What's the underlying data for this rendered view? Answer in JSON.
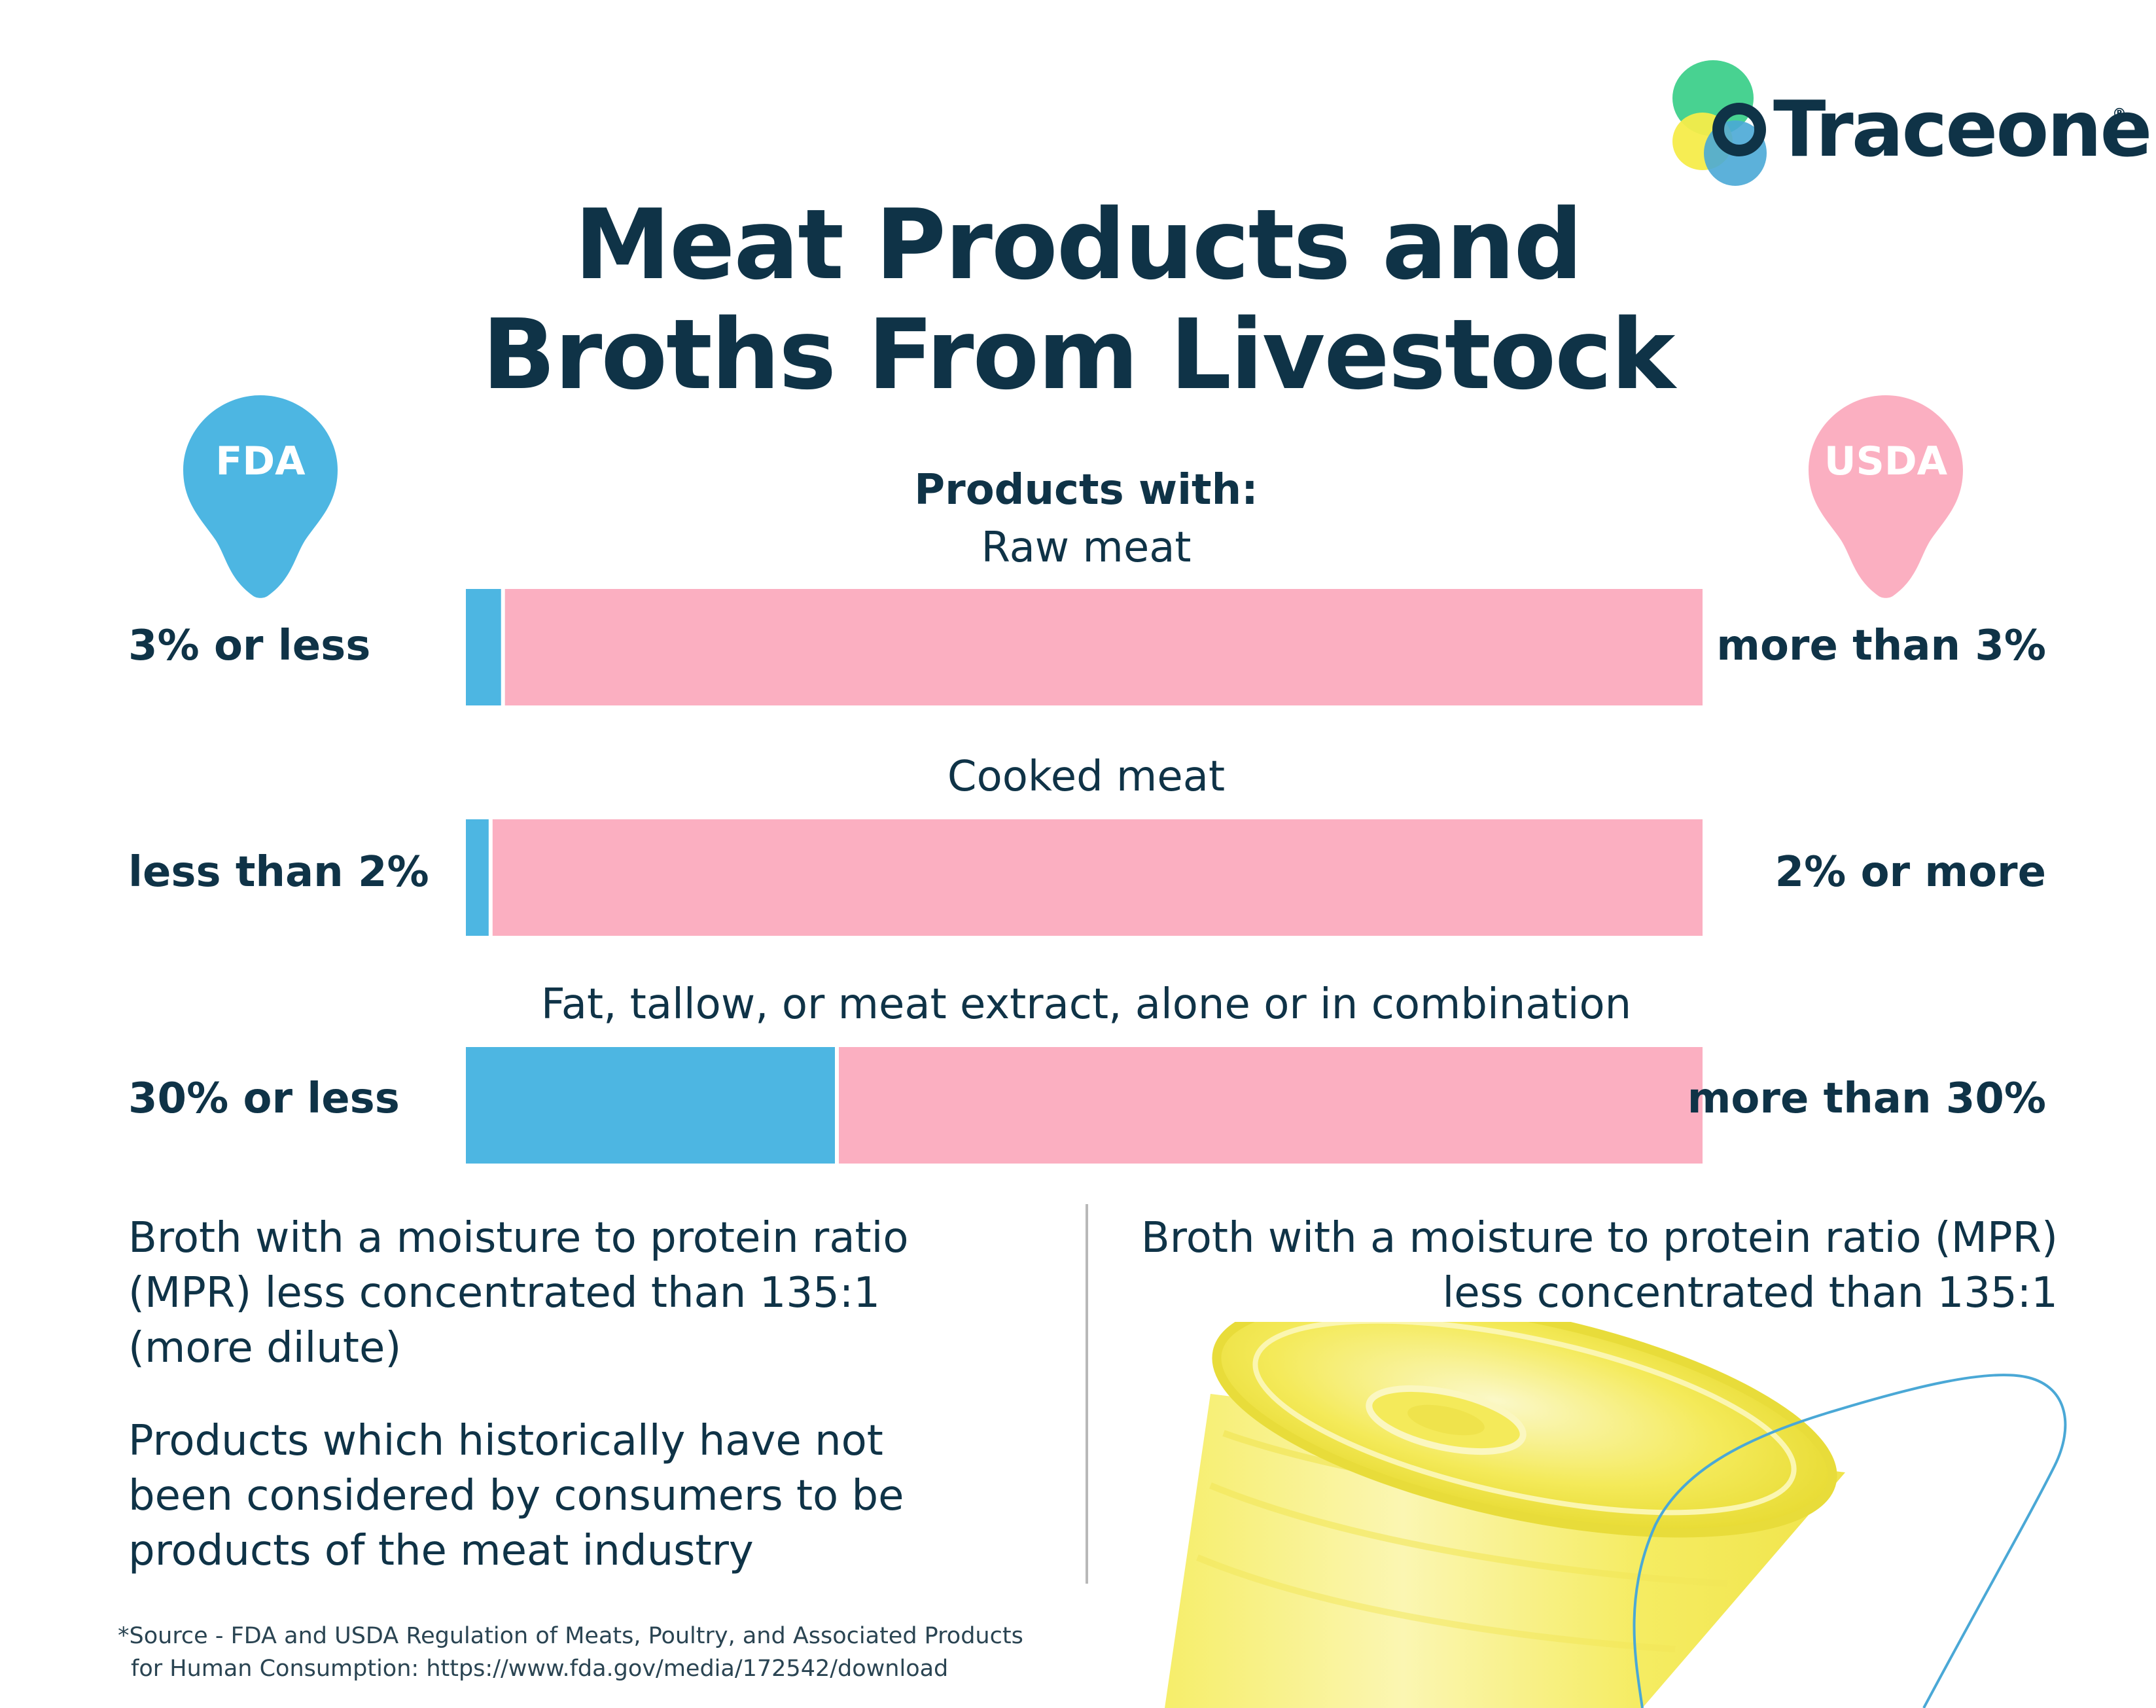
{
  "brand": {
    "name": "Traceone",
    "registered_mark": "®"
  },
  "title": {
    "line1": "Meat Products and",
    "line2": "Broths From Livestock"
  },
  "agencies": {
    "left": "FDA",
    "right": "USDA"
  },
  "colors": {
    "fda": "#4db6e2",
    "usda": "#fbafc1",
    "navy": "#0f3347",
    "accent_yellow": "#f6ec4a",
    "accent_green": "#3ed08b",
    "outline_blue": "#4aa8d6"
  },
  "chart_data": {
    "type": "bar",
    "orientation": "horizontal",
    "stacked": true,
    "title": "Products with:",
    "categories": [
      "Raw meat",
      "Cooked meat",
      "Fat, tallow, or meat extract, alone or in combination"
    ],
    "series": [
      {
        "name": "FDA",
        "threshold_labels": [
          "3% or less",
          "less than 2%",
          "30% or less"
        ],
        "values": [
          3,
          2,
          30
        ]
      },
      {
        "name": "USDA",
        "threshold_labels": [
          "more than 3%",
          "2% or more",
          "more than 30%"
        ],
        "values": [
          97,
          98,
          70
        ]
      }
    ],
    "xlim": [
      0,
      100
    ],
    "xlabel": "",
    "ylabel": ""
  },
  "notes": {
    "fda_broth": "Broth with a moisture to protein ratio (MPR) less concentrated than 135:1 (more dilute)",
    "fda_products": "Products which historically have not been considered by consumers to be products of the meat industry",
    "usda_broth": "Broth with a moisture to protein ratio (MPR) less concentrated than 135:1"
  },
  "source": {
    "line1": "*Source - FDA and USDA Regulation of Meats, Poultry, and Associated Products",
    "line2": "for Human Consumption: https://www.fda.gov/media/172542/download"
  }
}
